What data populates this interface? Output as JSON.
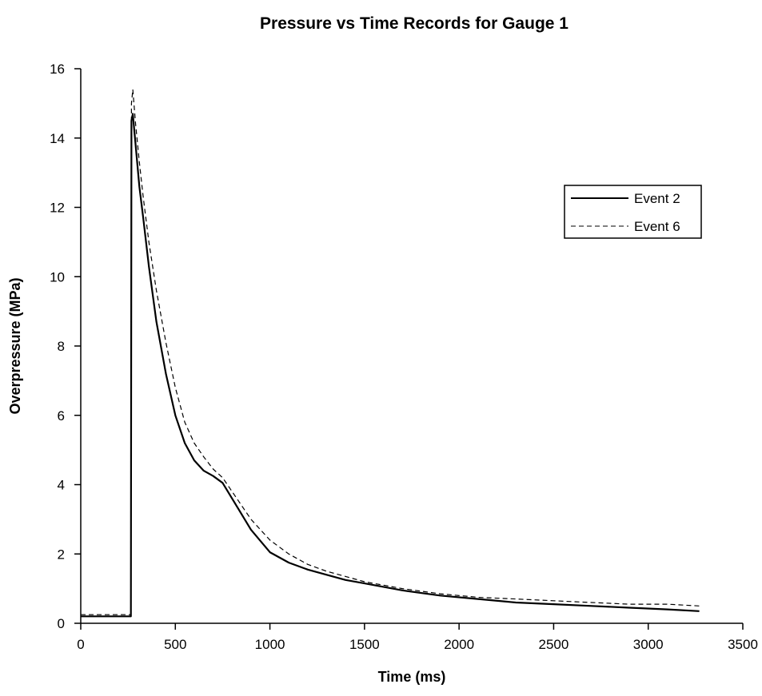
{
  "chart_data": {
    "type": "line",
    "title": "Pressure vs Time Records for Gauge 1",
    "xlabel": "Time  (ms)",
    "ylabel": "Overpressure  (MPa)",
    "xlim": [
      0,
      3500
    ],
    "ylim": [
      0,
      16
    ],
    "xticks": [
      0,
      500,
      1000,
      1500,
      2000,
      2500,
      3000,
      3500
    ],
    "yticks": [
      0,
      2,
      4,
      6,
      8,
      10,
      12,
      14,
      16
    ],
    "grid": false,
    "legend_position": "upper-right",
    "series": [
      {
        "name": "Event 2",
        "style": "solid",
        "color": "#000000",
        "x": [
          0,
          100,
          200,
          265,
          268,
          275,
          290,
          310,
          330,
          360,
          400,
          450,
          500,
          550,
          600,
          650,
          700,
          750,
          800,
          900,
          1000,
          1100,
          1200,
          1300,
          1400,
          1500,
          1700,
          1900,
          2100,
          2300,
          2500,
          2700,
          2900,
          3100,
          3270
        ],
        "y": [
          0.2,
          0.2,
          0.2,
          0.2,
          14.5,
          14.7,
          13.8,
          12.6,
          11.7,
          10.3,
          8.7,
          7.2,
          6.0,
          5.2,
          4.7,
          4.4,
          4.25,
          4.05,
          3.6,
          2.7,
          2.05,
          1.75,
          1.55,
          1.4,
          1.25,
          1.15,
          0.95,
          0.8,
          0.7,
          0.6,
          0.55,
          0.5,
          0.45,
          0.4,
          0.35
        ]
      },
      {
        "name": "Event 6",
        "style": "dashed",
        "color": "#000000",
        "x": [
          0,
          100,
          200,
          265,
          268,
          275,
          290,
          310,
          330,
          360,
          400,
          450,
          500,
          550,
          600,
          650,
          700,
          750,
          800,
          900,
          1000,
          1100,
          1200,
          1300,
          1400,
          1500,
          1700,
          1900,
          2100,
          2300,
          2500,
          2700,
          2900,
          3100,
          3270
        ],
        "y": [
          0.25,
          0.25,
          0.25,
          0.25,
          15.0,
          15.4,
          14.4,
          13.3,
          12.3,
          11.0,
          9.6,
          8.1,
          6.8,
          5.8,
          5.2,
          4.8,
          4.45,
          4.2,
          3.8,
          3.0,
          2.4,
          2.0,
          1.7,
          1.5,
          1.35,
          1.2,
          1.0,
          0.85,
          0.75,
          0.7,
          0.65,
          0.6,
          0.55,
          0.55,
          0.5
        ]
      }
    ]
  }
}
